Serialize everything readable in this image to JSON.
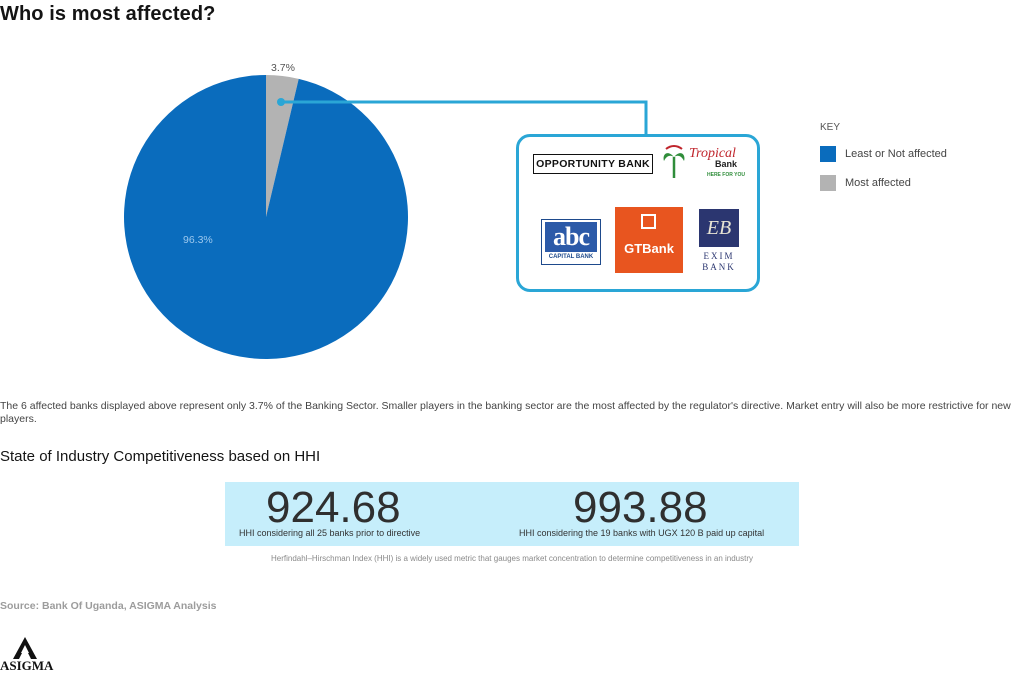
{
  "title": "Who is most affected?",
  "chart_data": {
    "type": "pie",
    "slices": [
      {
        "label": "Least or Not affected",
        "value": 96.3,
        "value_label": "96.3%",
        "color": "#0a6cbd"
      },
      {
        "label": "Most affected",
        "value": 3.7,
        "value_label": "3.7%",
        "color": "#b3b3b3"
      }
    ],
    "legend_title": "KEY",
    "legend_position": "right"
  },
  "callout_logos": {
    "opportunity": {
      "text": "OPPORTUNITY BANK"
    },
    "tropical": {
      "name": "Tropical",
      "sub": "Bank",
      "tagline": "HERE FOR YOU"
    },
    "abc": {
      "mark": "abc",
      "sub": "CAPITAL BANK"
    },
    "gtbank": {
      "text": "GTBank"
    },
    "exim": {
      "mark": "EB",
      "line1": "EXIM",
      "line2": "BANK"
    }
  },
  "colors": {
    "accent_line": "#2aa6d6",
    "hhi_bg": "#c6eefb"
  },
  "note": "The 6 affected banks displayed above represent only 3.7% of the Banking Sector. Smaller players in the banking sector are the most affected by the regulator's directive. Market entry will also be more restrictive for new players.",
  "hhi": {
    "heading": "State of Industry Competitiveness based on HHI",
    "metrics": [
      {
        "value": "924.68",
        "caption": "HHI considering all 25 banks prior to directive"
      },
      {
        "value": "993.88",
        "caption": "HHI considering the 19 banks with UGX 120 B paid up capital"
      }
    ],
    "definition": "Herfindahl–Hirschman Index (HHI) is a widely used metric that gauges market concentration to determine competitiveness in an industry"
  },
  "source": "Source: Bank Of Uganda, ASIGMA Analysis",
  "brand": "ASIGMA"
}
